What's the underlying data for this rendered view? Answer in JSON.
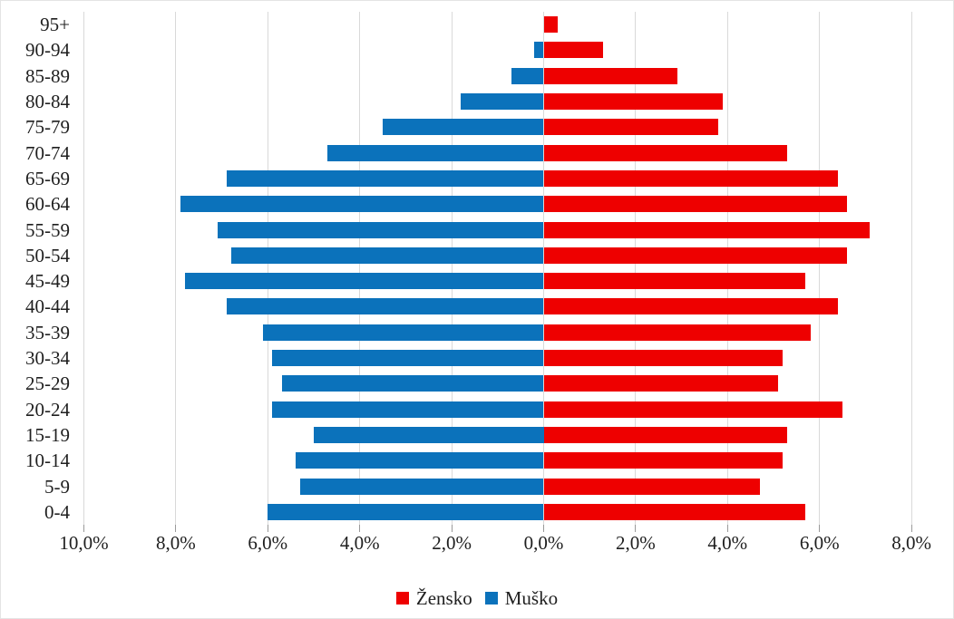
{
  "chart_data": {
    "type": "bar",
    "subtype": "population_pyramid",
    "orientation": "horizontal",
    "title": "",
    "categories": [
      "95+",
      "90-94",
      "85-89",
      "80-84",
      "75-79",
      "70-74",
      "65-69",
      "60-64",
      "55-59",
      "50-54",
      "45-49",
      "40-44",
      "35-39",
      "30-34",
      "25-29",
      "20-24",
      "15-19",
      "10-14",
      "5-9",
      "0-4"
    ],
    "series": [
      {
        "name": "Muško",
        "key": "musko",
        "side": "left",
        "color": "#0B72BB",
        "values": [
          0.0,
          0.2,
          0.7,
          1.8,
          3.5,
          4.7,
          6.9,
          7.9,
          7.1,
          6.8,
          7.8,
          6.9,
          6.1,
          5.9,
          5.7,
          5.9,
          5.0,
          5.4,
          5.3,
          6.0
        ]
      },
      {
        "name": "Žensko",
        "key": "zensko",
        "side": "right",
        "color": "#EE0000",
        "values": [
          0.3,
          1.3,
          2.9,
          3.9,
          3.8,
          5.3,
          6.4,
          6.6,
          7.1,
          6.6,
          5.7,
          6.4,
          5.8,
          5.2,
          5.1,
          6.5,
          5.3,
          5.2,
          4.7,
          5.7
        ]
      }
    ],
    "x_axis": {
      "unit": "percent",
      "tick_labels": [
        "10,0%",
        "8,0%",
        "6,0%",
        "4,0%",
        "2,0%",
        "0,0%",
        "2,0%",
        "4,0%",
        "6,0%",
        "8,0%"
      ],
      "tick_values": [
        -10,
        -8,
        -6,
        -4,
        -2,
        0,
        2,
        4,
        6,
        8
      ],
      "left_max": 10,
      "right_max": 8
    },
    "grid": true,
    "legend": {
      "position": "bottom",
      "items": [
        {
          "label": "Žensko",
          "key": "zensko",
          "color": "#EE0000"
        },
        {
          "label": "Muško",
          "key": "musko",
          "color": "#0B72BB"
        }
      ]
    }
  }
}
